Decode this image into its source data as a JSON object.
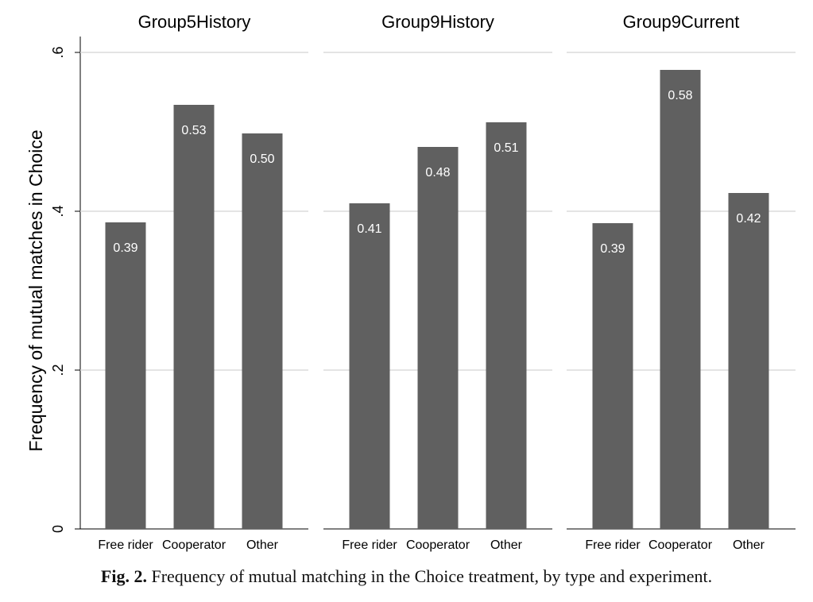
{
  "caption": {
    "label": "Fig. 2.",
    "text": "Frequency of mutual matching in the Choice treatment, by type and experiment."
  },
  "colors": {
    "bar": "#606060",
    "grid": "#dcdcdc",
    "axis": "#000000",
    "value_label": "#ffffff"
  },
  "chart_data": {
    "type": "bar",
    "ylabel": "Frequency of mutual matches in Choice",
    "ylim": [
      0,
      0.6
    ],
    "yticks": [
      0,
      0.2,
      0.4,
      0.6
    ],
    "yticklabels": [
      "0",
      ".2",
      ".4",
      ".6"
    ],
    "grid": true,
    "categories": [
      "Free rider",
      "Cooperator",
      "Other"
    ],
    "panels": [
      {
        "title": "Group5History",
        "values": [
          0.386,
          0.534,
          0.498
        ],
        "labels": [
          "0.39",
          "0.53",
          "0.50"
        ]
      },
      {
        "title": "Group9History",
        "values": [
          0.41,
          0.481,
          0.512
        ],
        "labels": [
          "0.41",
          "0.48",
          "0.51"
        ]
      },
      {
        "title": "Group9Current",
        "values": [
          0.385,
          0.578,
          0.423
        ],
        "labels": [
          "0.39",
          "0.58",
          "0.42"
        ]
      }
    ]
  }
}
